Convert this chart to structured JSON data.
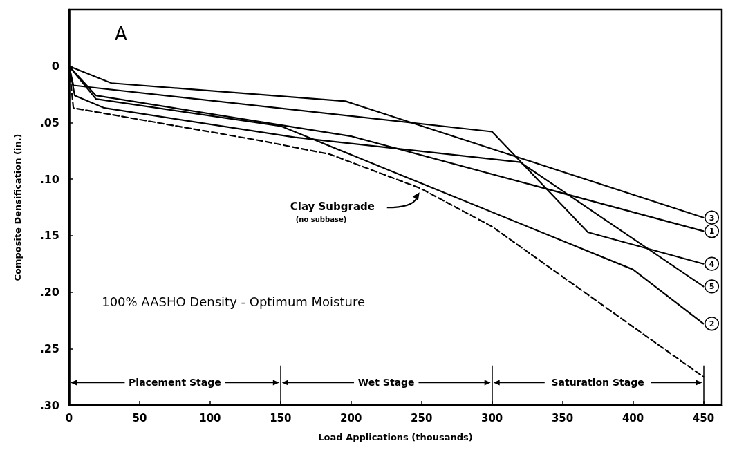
{
  "chart_data": {
    "type": "line",
    "xlabel": "Load Applications (thousands)",
    "ylabel": "Composite Densification (in.)",
    "xlim": [
      0,
      463
    ],
    "xticks": [
      0,
      50,
      100,
      150,
      200,
      250,
      300,
      350,
      400,
      450
    ],
    "ylim": [
      0.3,
      -0.05
    ],
    "yticks": [
      {
        "value": 0,
        "label": "0"
      },
      {
        "value": 0.05,
        "label": ".05"
      },
      {
        "value": 0.1,
        "label": ".10"
      },
      {
        "value": 0.15,
        "label": ".15"
      },
      {
        "value": 0.2,
        "label": ".20"
      },
      {
        "value": 0.25,
        "label": ".25"
      },
      {
        "value": 0.3,
        "label": ".30"
      }
    ],
    "grid": false,
    "legend": "right",
    "marker": "none",
    "series": [
      {
        "name": "1",
        "color": "#000000",
        "x": [
          0,
          19,
          200,
          450
        ],
        "values": [
          0,
          0.026,
          0.062,
          0.146
        ]
      },
      {
        "name": "2",
        "color": "#000000",
        "x": [
          0,
          19,
          150,
          400,
          450
        ],
        "values": [
          0,
          0.029,
          0.053,
          0.18,
          0.228
        ]
      },
      {
        "name": "3",
        "color": "#000000",
        "x": [
          0,
          30,
          196,
          450
        ],
        "values": [
          0,
          0.015,
          0.031,
          0.134
        ]
      },
      {
        "name": "4",
        "color": "#000000",
        "x": [
          0,
          3,
          300,
          368,
          450
        ],
        "values": [
          0,
          0.017,
          0.058,
          0.147,
          0.175
        ]
      },
      {
        "name": "5",
        "color": "#000000",
        "x": [
          0,
          4,
          25,
          160,
          320,
          450
        ],
        "values": [
          0,
          0.026,
          0.037,
          0.063,
          0.085,
          0.195
        ]
      },
      {
        "color": "#000000",
        "line_style": "dashed",
        "x": [
          0,
          3,
          136,
          185,
          249,
          300,
          450
        ],
        "values": [
          0,
          0.037,
          0.066,
          0.078,
          0.108,
          0.142,
          0.275
        ]
      }
    ],
    "ref_lines": [
      {
        "axis": "x",
        "value": 150
      },
      {
        "axis": "x",
        "value": 300
      },
      {
        "axis": "x",
        "value": 450
      }
    ],
    "annotations": [
      "A",
      "Clay Subgrade\n(no subbase)",
      "100% AASHO Density - Optimum Moisture",
      "Placement Stage",
      "Wet Stage",
      "Saturation Stage"
    ]
  }
}
